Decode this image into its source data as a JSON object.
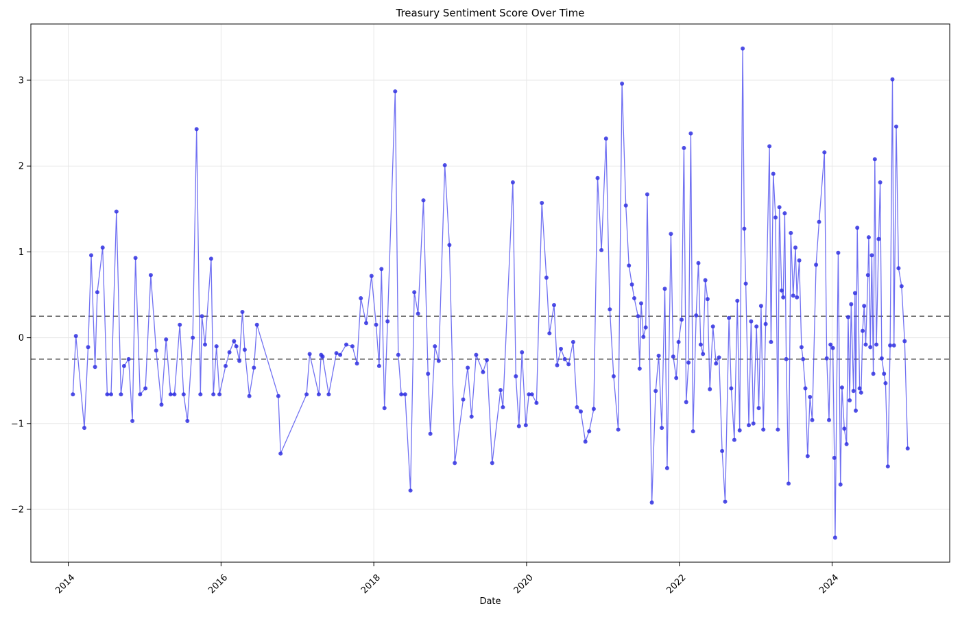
{
  "chart_data": {
    "type": "line",
    "title": "Treasury Sentiment Score Over Time",
    "xlabel": "Date",
    "ylabel": "",
    "series_name": "Treasury Sentiment Score",
    "line_color": "#4040ee",
    "marker_color": "#3030e0",
    "threshold_color": "#5a5a5a",
    "grid_color": "#e7e7e7",
    "spine_color": "#000000",
    "grid": true,
    "legend": false,
    "marker": "circle",
    "thresholds": [
      0.25,
      -0.25
    ],
    "xlim": [
      2013.51,
      2025.54
    ],
    "ylim": [
      -2.615,
      3.655
    ],
    "x_ticks": [
      2014,
      2016,
      2018,
      2020,
      2022,
      2024
    ],
    "x_tick_labels": [
      "2014",
      "2016",
      "2018",
      "2020",
      "2022",
      "2024"
    ],
    "y_ticks": [
      -2,
      -1,
      0,
      1,
      2,
      3
    ],
    "y_tick_labels": [
      "−2",
      "−1",
      "0",
      "1",
      "2",
      "3"
    ],
    "points": [
      [
        2014.06,
        -0.66
      ],
      [
        2014.1,
        0.02
      ],
      [
        2014.21,
        -1.05
      ],
      [
        2014.26,
        -0.11
      ],
      [
        2014.3,
        0.96
      ],
      [
        2014.35,
        -0.34
      ],
      [
        2014.38,
        0.53
      ],
      [
        2014.45,
        1.05
      ],
      [
        2014.51,
        -0.66
      ],
      [
        2014.56,
        -0.66
      ],
      [
        2014.63,
        1.47
      ],
      [
        2014.69,
        -0.66
      ],
      [
        2014.73,
        -0.33
      ],
      [
        2014.79,
        -0.25
      ],
      [
        2014.84,
        -0.97
      ],
      [
        2014.88,
        0.93
      ],
      [
        2014.94,
        -0.66
      ],
      [
        2015.01,
        -0.59
      ],
      [
        2015.08,
        0.73
      ],
      [
        2015.15,
        -0.15
      ],
      [
        2015.22,
        -0.78
      ],
      [
        2015.28,
        -0.02
      ],
      [
        2015.34,
        -0.66
      ],
      [
        2015.39,
        -0.66
      ],
      [
        2015.46,
        0.15
      ],
      [
        2015.51,
        -0.66
      ],
      [
        2015.56,
        -0.97
      ],
      [
        2015.63,
        0.0
      ],
      [
        2015.68,
        2.43
      ],
      [
        2015.73,
        -0.66
      ],
      [
        2015.75,
        0.25
      ],
      [
        2015.79,
        -0.08
      ],
      [
        2015.87,
        0.92
      ],
      [
        2015.9,
        -0.66
      ],
      [
        2015.94,
        -0.1
      ],
      [
        2015.98,
        -0.66
      ],
      [
        2016.06,
        -0.33
      ],
      [
        2016.11,
        -0.17
      ],
      [
        2016.17,
        -0.04
      ],
      [
        2016.2,
        -0.1
      ],
      [
        2016.24,
        -0.27
      ],
      [
        2016.28,
        0.3
      ],
      [
        2016.31,
        -0.14
      ],
      [
        2016.37,
        -0.68
      ],
      [
        2016.43,
        -0.35
      ],
      [
        2016.47,
        0.15
      ],
      [
        2016.75,
        -0.68
      ],
      [
        2016.78,
        -1.35
      ],
      [
        2017.12,
        -0.66
      ],
      [
        2017.16,
        -0.19
      ],
      [
        2017.28,
        -0.66
      ],
      [
        2017.31,
        -0.2
      ],
      [
        2017.33,
        -0.22
      ],
      [
        2017.41,
        -0.66
      ],
      [
        2017.51,
        -0.18
      ],
      [
        2017.56,
        -0.2
      ],
      [
        2017.64,
        -0.08
      ],
      [
        2017.72,
        -0.1
      ],
      [
        2017.78,
        -0.3
      ],
      [
        2017.83,
        0.46
      ],
      [
        2017.9,
        0.17
      ],
      [
        2017.97,
        0.72
      ],
      [
        2018.03,
        0.15
      ],
      [
        2018.07,
        -0.33
      ],
      [
        2018.1,
        0.8
      ],
      [
        2018.14,
        -0.82
      ],
      [
        2018.18,
        0.19
      ],
      [
        2018.28,
        2.87
      ],
      [
        2018.32,
        -0.2
      ],
      [
        2018.36,
        -0.66
      ],
      [
        2018.41,
        -0.66
      ],
      [
        2018.48,
        -1.78
      ],
      [
        2018.53,
        0.53
      ],
      [
        2018.58,
        0.28
      ],
      [
        2018.65,
        1.6
      ],
      [
        2018.71,
        -0.42
      ],
      [
        2018.74,
        -1.12
      ],
      [
        2018.8,
        -0.1
      ],
      [
        2018.85,
        -0.27
      ],
      [
        2018.93,
        2.01
      ],
      [
        2018.99,
        1.08
      ],
      [
        2019.06,
        -1.46
      ],
      [
        2019.17,
        -0.72
      ],
      [
        2019.23,
        -0.35
      ],
      [
        2019.28,
        -0.92
      ],
      [
        2019.34,
        -0.2
      ],
      [
        2019.43,
        -0.4
      ],
      [
        2019.48,
        -0.26
      ],
      [
        2019.55,
        -1.46
      ],
      [
        2019.66,
        -0.61
      ],
      [
        2019.69,
        -0.81
      ],
      [
        2019.82,
        1.81
      ],
      [
        2019.86,
        -0.45
      ],
      [
        2019.9,
        -1.03
      ],
      [
        2019.94,
        -0.17
      ],
      [
        2019.99,
        -1.02
      ],
      [
        2020.03,
        -0.66
      ],
      [
        2020.07,
        -0.66
      ],
      [
        2020.13,
        -0.76
      ],
      [
        2020.2,
        1.57
      ],
      [
        2020.26,
        0.7
      ],
      [
        2020.3,
        0.05
      ],
      [
        2020.36,
        0.38
      ],
      [
        2020.4,
        -0.32
      ],
      [
        2020.45,
        -0.13
      ],
      [
        2020.5,
        -0.25
      ],
      [
        2020.55,
        -0.31
      ],
      [
        2020.61,
        -0.05
      ],
      [
        2020.66,
        -0.81
      ],
      [
        2020.71,
        -0.86
      ],
      [
        2020.77,
        -1.21
      ],
      [
        2020.82,
        -1.09
      ],
      [
        2020.88,
        -0.83
      ],
      [
        2020.93,
        1.86
      ],
      [
        2020.98,
        1.02
      ],
      [
        2021.04,
        2.32
      ],
      [
        2021.09,
        0.33
      ],
      [
        2021.14,
        -0.45
      ],
      [
        2021.2,
        -1.07
      ],
      [
        2021.25,
        2.96
      ],
      [
        2021.3,
        1.54
      ],
      [
        2021.34,
        0.84
      ],
      [
        2021.38,
        0.62
      ],
      [
        2021.41,
        0.46
      ],
      [
        2021.46,
        0.25
      ],
      [
        2021.48,
        -0.36
      ],
      [
        2021.5,
        0.4
      ],
      [
        2021.53,
        0.01
      ],
      [
        2021.56,
        0.12
      ],
      [
        2021.58,
        1.67
      ],
      [
        2021.64,
        -1.92
      ],
      [
        2021.69,
        -0.62
      ],
      [
        2021.73,
        -0.21
      ],
      [
        2021.77,
        -1.05
      ],
      [
        2021.81,
        0.57
      ],
      [
        2021.84,
        -1.52
      ],
      [
        2021.89,
        1.21
      ],
      [
        2021.92,
        -0.22
      ],
      [
        2021.96,
        -0.47
      ],
      [
        2021.99,
        -0.05
      ],
      [
        2022.03,
        0.21
      ],
      [
        2022.06,
        2.21
      ],
      [
        2022.09,
        -0.75
      ],
      [
        2022.12,
        -0.29
      ],
      [
        2022.15,
        2.38
      ],
      [
        2022.18,
        -1.09
      ],
      [
        2022.22,
        0.26
      ],
      [
        2022.25,
        0.87
      ],
      [
        2022.28,
        -0.08
      ],
      [
        2022.31,
        -0.19
      ],
      [
        2022.34,
        0.67
      ],
      [
        2022.37,
        0.45
      ],
      [
        2022.4,
        -0.6
      ],
      [
        2022.44,
        0.13
      ],
      [
        2022.48,
        -0.3
      ],
      [
        2022.52,
        -0.23
      ],
      [
        2022.56,
        -1.32
      ],
      [
        2022.6,
        -1.91
      ],
      [
        2022.65,
        0.23
      ],
      [
        2022.68,
        -0.59
      ],
      [
        2022.72,
        -1.19
      ],
      [
        2022.76,
        0.43
      ],
      [
        2022.79,
        -1.08
      ],
      [
        2022.83,
        3.37
      ],
      [
        2022.85,
        1.27
      ],
      [
        2022.87,
        0.63
      ],
      [
        2022.91,
        -1.02
      ],
      [
        2022.94,
        0.19
      ],
      [
        2022.97,
        -1.0
      ],
      [
        2023.01,
        0.13
      ],
      [
        2023.04,
        -0.82
      ],
      [
        2023.07,
        0.37
      ],
      [
        2023.1,
        -1.07
      ],
      [
        2023.13,
        0.16
      ],
      [
        2023.18,
        2.23
      ],
      [
        2023.2,
        -0.05
      ],
      [
        2023.23,
        1.91
      ],
      [
        2023.26,
        1.4
      ],
      [
        2023.29,
        -1.07
      ],
      [
        2023.31,
        1.52
      ],
      [
        2023.34,
        0.55
      ],
      [
        2023.36,
        0.47
      ],
      [
        2023.38,
        1.45
      ],
      [
        2023.4,
        -0.25
      ],
      [
        2023.43,
        -1.7
      ],
      [
        2023.46,
        1.22
      ],
      [
        2023.49,
        0.49
      ],
      [
        2023.52,
        1.05
      ],
      [
        2023.54,
        0.47
      ],
      [
        2023.57,
        0.9
      ],
      [
        2023.6,
        -0.11
      ],
      [
        2023.62,
        -0.25
      ],
      [
        2023.65,
        -0.59
      ],
      [
        2023.68,
        -1.38
      ],
      [
        2023.71,
        -0.69
      ],
      [
        2023.74,
        -0.96
      ],
      [
        2023.79,
        0.85
      ],
      [
        2023.83,
        1.35
      ],
      [
        2023.9,
        2.16
      ],
      [
        2023.93,
        -0.24
      ],
      [
        2023.96,
        -0.96
      ],
      [
        2023.98,
        -0.08
      ],
      [
        2024.01,
        -0.12
      ],
      [
        2024.03,
        -1.4
      ],
      [
        2024.04,
        -2.33
      ],
      [
        2024.08,
        0.99
      ],
      [
        2024.11,
        -1.71
      ],
      [
        2024.13,
        -0.58
      ],
      [
        2024.16,
        -1.06
      ],
      [
        2024.19,
        -1.24
      ],
      [
        2024.21,
        0.24
      ],
      [
        2024.23,
        -0.73
      ],
      [
        2024.25,
        0.39
      ],
      [
        2024.28,
        -0.62
      ],
      [
        2024.3,
        0.52
      ],
      [
        2024.31,
        -0.85
      ],
      [
        2024.33,
        1.28
      ],
      [
        2024.36,
        -0.59
      ],
      [
        2024.38,
        -0.64
      ],
      [
        2024.4,
        0.08
      ],
      [
        2024.42,
        0.37
      ],
      [
        2024.44,
        -0.08
      ],
      [
        2024.47,
        0.73
      ],
      [
        2024.48,
        1.17
      ],
      [
        2024.5,
        -0.11
      ],
      [
        2024.52,
        0.96
      ],
      [
        2024.54,
        -0.42
      ],
      [
        2024.56,
        2.08
      ],
      [
        2024.58,
        -0.08
      ],
      [
        2024.61,
        1.15
      ],
      [
        2024.63,
        1.81
      ],
      [
        2024.65,
        -0.24
      ],
      [
        2024.68,
        -0.42
      ],
      [
        2024.7,
        -0.53
      ],
      [
        2024.73,
        -1.5
      ],
      [
        2024.76,
        -0.09
      ],
      [
        2024.79,
        3.01
      ],
      [
        2024.81,
        -0.09
      ],
      [
        2024.84,
        2.46
      ],
      [
        2024.87,
        0.81
      ],
      [
        2024.91,
        0.6
      ],
      [
        2024.95,
        -0.04
      ],
      [
        2024.99,
        -1.29
      ]
    ]
  }
}
